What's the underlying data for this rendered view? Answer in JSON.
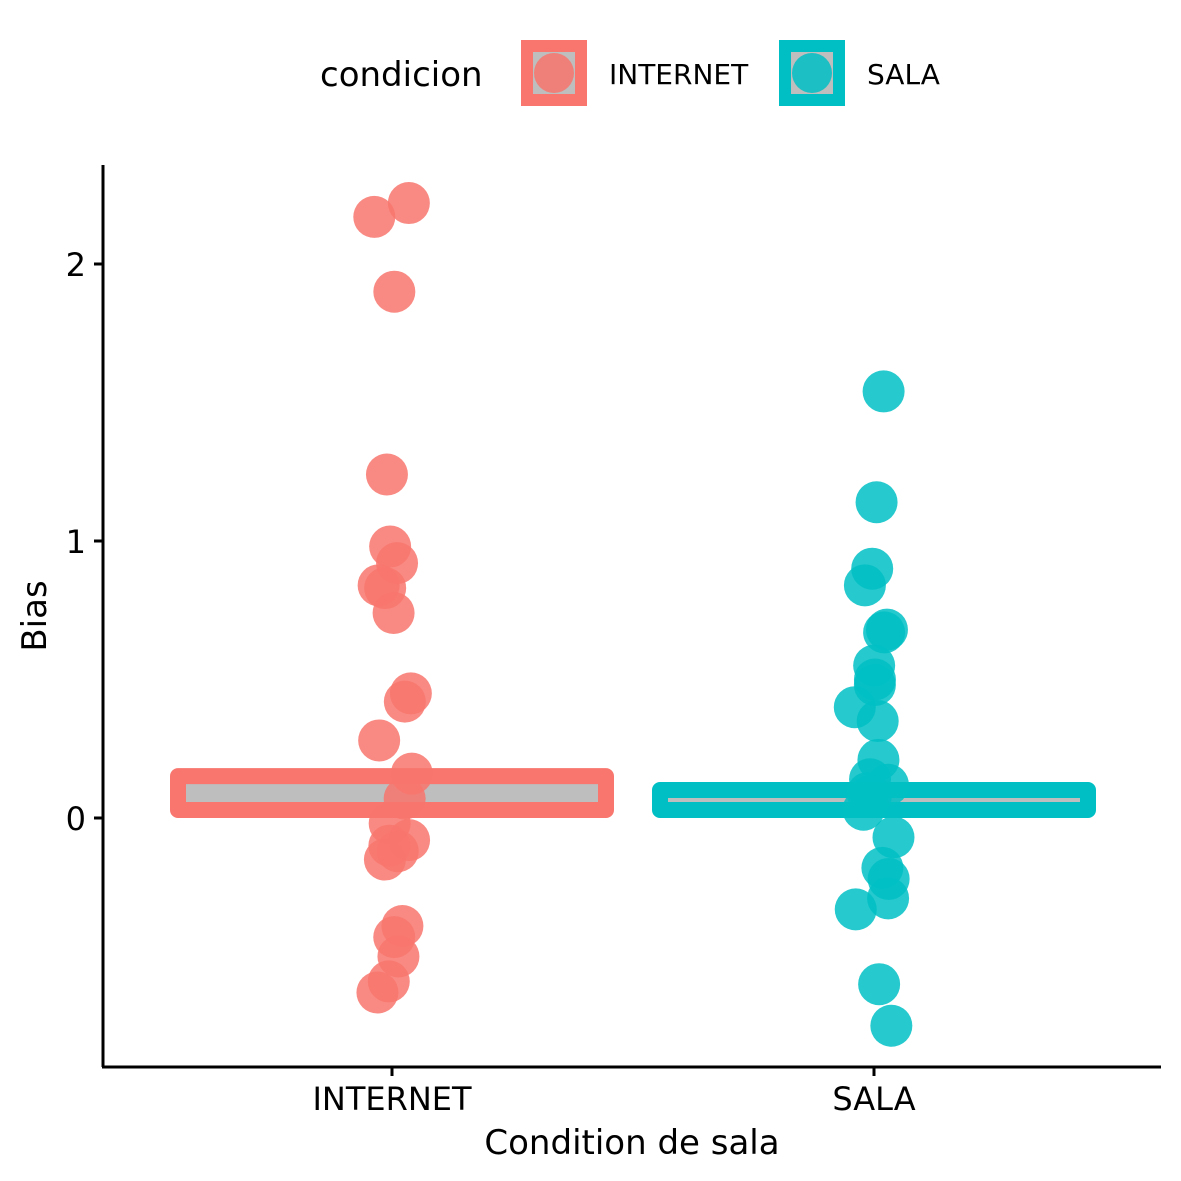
{
  "chart_data": {
    "type": "bar",
    "xlabel": "Condition de sala",
    "ylabel": "Bias",
    "categories": [
      "INTERNET",
      "SALA"
    ],
    "values": [
      0.18,
      0.13
    ],
    "y_ticks": [
      0,
      1,
      2
    ],
    "ylim": [
      -0.9,
      2.35
    ],
    "legend": {
      "title": "condicion",
      "position": "top",
      "entries": [
        "INTERNET",
        "SALA"
      ]
    },
    "colors": {
      "INTERNET": "#F8766D",
      "SALA": "#00BFC4",
      "bar_fill": "#BEBEBE"
    },
    "points": [
      {
        "name": "INTERNET",
        "values": [
          2.22,
          2.17,
          1.9,
          1.24,
          0.98,
          0.92,
          0.84,
          0.83,
          0.74,
          0.45,
          0.42,
          0.28,
          0.16,
          0.07,
          -0.02,
          -0.08,
          -0.1,
          -0.12,
          -0.15,
          -0.39,
          -0.43,
          -0.5,
          -0.59,
          -0.63
        ]
      },
      {
        "name": "SALA",
        "values": [
          1.54,
          1.14,
          0.9,
          0.84,
          0.68,
          0.67,
          0.55,
          0.5,
          0.48,
          0.4,
          0.35,
          0.21,
          0.14,
          0.12,
          0.09,
          0.08,
          0.03,
          -0.07,
          -0.18,
          -0.22,
          -0.29,
          -0.33,
          -0.6,
          -0.75
        ]
      }
    ]
  }
}
